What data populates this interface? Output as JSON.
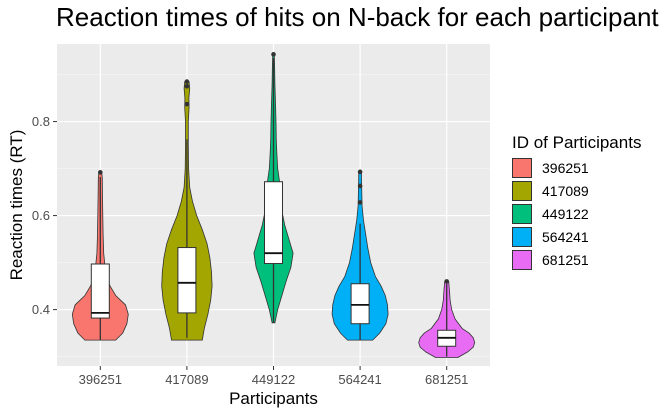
{
  "title": "Reaction times of hits on N-back for each participant",
  "chart_data": {
    "type": "violin",
    "xlabel": "Participants",
    "ylabel": "Reaction times (RT)",
    "ylim": [
      0.28,
      0.965
    ],
    "yticks": [
      0.4,
      0.6,
      0.8
    ],
    "ytick_labels": [
      "0.4",
      "0.6",
      "0.8"
    ],
    "categories": [
      "396251",
      "417089",
      "449122",
      "564241",
      "681251"
    ],
    "legend": {
      "title": "ID of Participants",
      "position": "right",
      "items": [
        {
          "label": "396251",
          "color": "#F8766D"
        },
        {
          "label": "417089",
          "color": "#A3A500"
        },
        {
          "label": "449122",
          "color": "#00BF7D"
        },
        {
          "label": "564241",
          "color": "#00B0F6"
        },
        {
          "label": "681251",
          "color": "#E76BF3"
        }
      ]
    },
    "series": [
      {
        "name": "396251",
        "color": "#F8766D",
        "box": {
          "lower_whisker": 0.335,
          "q1": 0.382,
          "median": 0.393,
          "q3": 0.497,
          "upper_whisker": 0.682
        },
        "outliers": [
          0.692
        ],
        "density": [
          [
            0.335,
            0.55
          ],
          [
            0.35,
            0.8
          ],
          [
            0.37,
            0.95
          ],
          [
            0.39,
            1.0
          ],
          [
            0.41,
            0.9
          ],
          [
            0.43,
            0.55
          ],
          [
            0.45,
            0.35
          ],
          [
            0.47,
            0.22
          ],
          [
            0.49,
            0.17
          ],
          [
            0.52,
            0.12
          ],
          [
            0.56,
            0.1
          ],
          [
            0.6,
            0.09
          ],
          [
            0.64,
            0.08
          ],
          [
            0.68,
            0.07
          ],
          [
            0.692,
            0.05
          ]
        ]
      },
      {
        "name": "417089",
        "color": "#A3A500",
        "box": {
          "lower_whisker": 0.34,
          "q1": 0.393,
          "median": 0.457,
          "q3": 0.532,
          "upper_whisker": 0.762
        },
        "outliers": [
          0.837,
          0.875,
          0.885
        ],
        "density": [
          [
            0.335,
            0.55
          ],
          [
            0.36,
            0.62
          ],
          [
            0.39,
            0.75
          ],
          [
            0.42,
            0.85
          ],
          [
            0.45,
            0.9
          ],
          [
            0.48,
            0.88
          ],
          [
            0.51,
            0.82
          ],
          [
            0.54,
            0.72
          ],
          [
            0.57,
            0.55
          ],
          [
            0.6,
            0.35
          ],
          [
            0.63,
            0.2
          ],
          [
            0.66,
            0.1
          ],
          [
            0.7,
            0.06
          ],
          [
            0.75,
            0.05
          ],
          [
            0.8,
            0.05
          ],
          [
            0.83,
            0.08
          ],
          [
            0.85,
            0.07
          ],
          [
            0.87,
            0.1
          ],
          [
            0.885,
            0.08
          ]
        ]
      },
      {
        "name": "449122",
        "color": "#00BF7D",
        "box": {
          "lower_whisker": 0.372,
          "q1": 0.498,
          "median": 0.52,
          "q3": 0.672,
          "upper_whisker": 0.935
        },
        "outliers": [
          0.943
        ],
        "density": [
          [
            0.372,
            0.05
          ],
          [
            0.4,
            0.15
          ],
          [
            0.43,
            0.3
          ],
          [
            0.46,
            0.45
          ],
          [
            0.49,
            0.62
          ],
          [
            0.52,
            0.7
          ],
          [
            0.55,
            0.55
          ],
          [
            0.58,
            0.4
          ],
          [
            0.61,
            0.3
          ],
          [
            0.64,
            0.28
          ],
          [
            0.67,
            0.22
          ],
          [
            0.7,
            0.15
          ],
          [
            0.73,
            0.12
          ],
          [
            0.76,
            0.1
          ],
          [
            0.8,
            0.09
          ],
          [
            0.84,
            0.07
          ],
          [
            0.88,
            0.05
          ],
          [
            0.92,
            0.04
          ],
          [
            0.943,
            0.03
          ]
        ]
      },
      {
        "name": "564241",
        "color": "#00B0F6",
        "box": {
          "lower_whisker": 0.335,
          "q1": 0.37,
          "median": 0.41,
          "q3": 0.455,
          "upper_whisker": 0.583
        },
        "outliers": [
          0.628,
          0.663,
          0.693
        ],
        "density": [
          [
            0.335,
            0.45
          ],
          [
            0.35,
            0.7
          ],
          [
            0.37,
            0.92
          ],
          [
            0.39,
            1.0
          ],
          [
            0.41,
            0.98
          ],
          [
            0.43,
            0.9
          ],
          [
            0.45,
            0.75
          ],
          [
            0.47,
            0.55
          ],
          [
            0.5,
            0.38
          ],
          [
            0.53,
            0.28
          ],
          [
            0.56,
            0.2
          ],
          [
            0.59,
            0.12
          ],
          [
            0.62,
            0.07
          ],
          [
            0.65,
            0.06
          ],
          [
            0.68,
            0.05
          ],
          [
            0.693,
            0.05
          ]
        ]
      },
      {
        "name": "681251",
        "color": "#E76BF3",
        "box": {
          "lower_whisker": 0.3,
          "q1": 0.322,
          "median": 0.34,
          "q3": 0.356,
          "upper_whisker": 0.455
        },
        "outliers": [
          0.46
        ],
        "density": [
          [
            0.298,
            0.4
          ],
          [
            0.31,
            0.75
          ],
          [
            0.32,
            0.95
          ],
          [
            0.33,
            1.0
          ],
          [
            0.34,
            0.95
          ],
          [
            0.35,
            0.8
          ],
          [
            0.36,
            0.55
          ],
          [
            0.38,
            0.3
          ],
          [
            0.4,
            0.18
          ],
          [
            0.42,
            0.12
          ],
          [
            0.44,
            0.1
          ],
          [
            0.46,
            0.07
          ]
        ]
      }
    ]
  }
}
